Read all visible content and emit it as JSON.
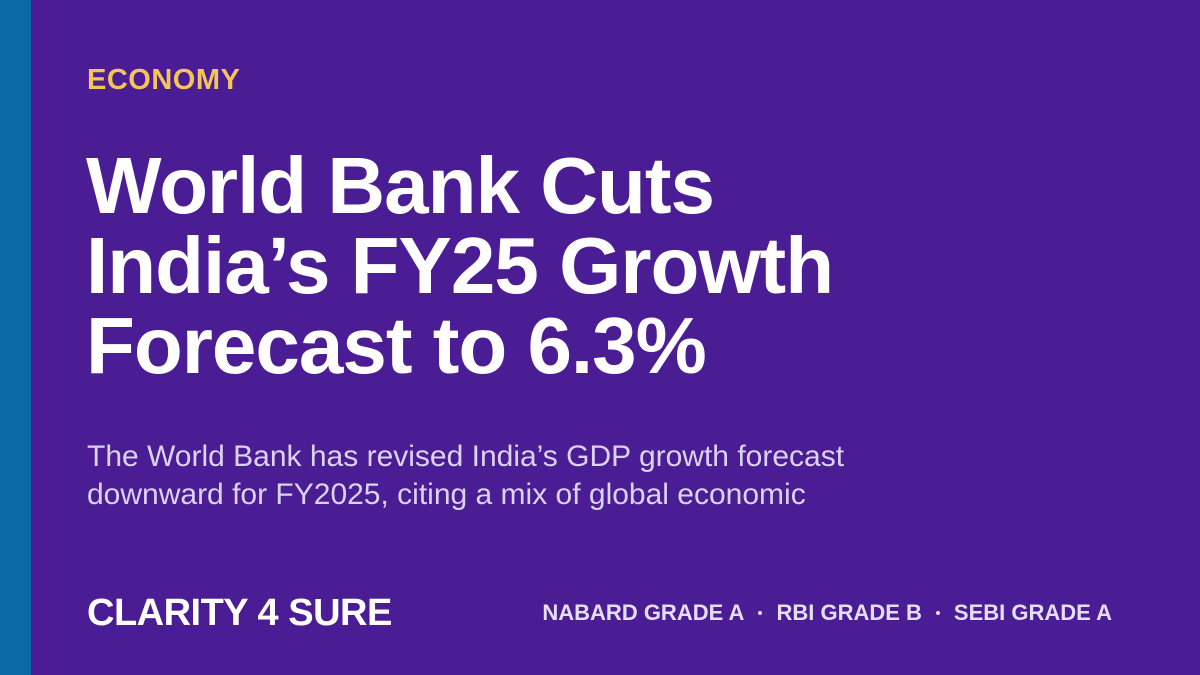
{
  "category": "ECONOMY",
  "title_lines": [
    "World Bank Cuts",
    "India’s FY25 Growth",
    "Forecast to 6.3%"
  ],
  "description_lines": [
    "The World Bank has revised India’s GDP growth forecast",
    "downward for FY2025, citing a mix of global economic"
  ],
  "brand": "CLARITY 4 SURE",
  "tags": [
    "NABARD GRADE A",
    "RBI GRADE B",
    "SEBI GRADE A"
  ]
}
